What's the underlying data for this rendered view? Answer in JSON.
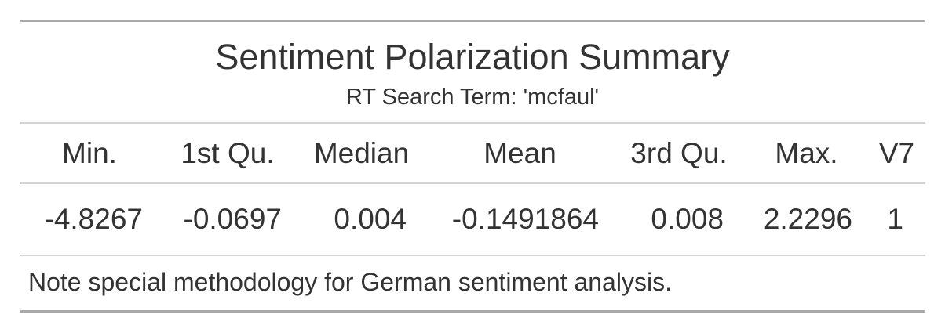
{
  "chart_data": {
    "type": "table",
    "title": "Sentiment Polarization Summary",
    "subtitle": "RT Search Term: 'mcfaul'",
    "columns": [
      "Min.",
      "1st Qu.",
      "Median",
      "Mean",
      "3rd Qu.",
      "Max.",
      "V7"
    ],
    "rows": [
      [
        "-4.8267",
        "-0.0697",
        "0.004",
        "-0.1491864",
        "0.008",
        "2.2296",
        "1"
      ]
    ],
    "footnote": "Note special methodology for German sentiment analysis."
  }
}
